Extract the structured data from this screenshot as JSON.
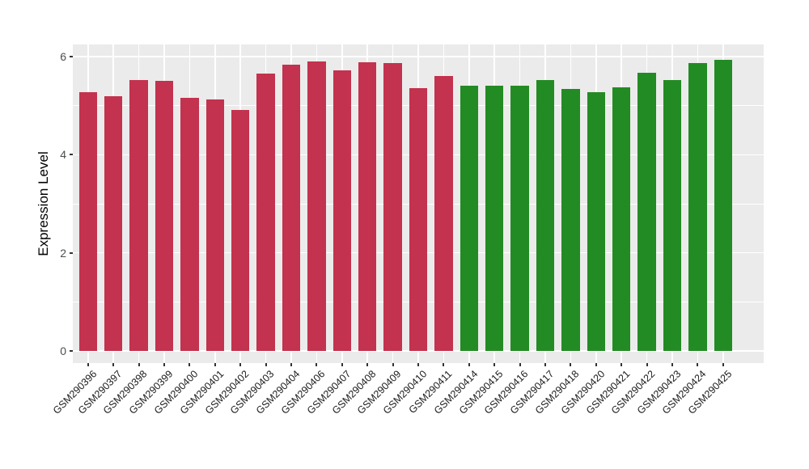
{
  "chart_data": {
    "type": "bar",
    "title": "",
    "xlabel": "",
    "ylabel": "Expression Level",
    "ylim": [
      -0.25,
      6.25
    ],
    "y_ticks": [
      0,
      2,
      4,
      6
    ],
    "y_minor_gridlines": [
      1,
      3,
      5
    ],
    "grid": true,
    "legend": false,
    "panel_background": "#EBEBEB",
    "gridline_color": "#FFFFFF",
    "axis_text_color": "#4D4D4D",
    "group_colors": {
      "left_group": "#C3324E",
      "right_group": "#238B23"
    },
    "bars": [
      {
        "label": "GSM290396",
        "value": 5.27,
        "group": "left_group"
      },
      {
        "label": "GSM290397",
        "value": 5.2,
        "group": "left_group"
      },
      {
        "label": "GSM290398",
        "value": 5.52,
        "group": "left_group"
      },
      {
        "label": "GSM290399",
        "value": 5.51,
        "group": "left_group"
      },
      {
        "label": "GSM290400",
        "value": 5.16,
        "group": "left_group"
      },
      {
        "label": "GSM290401",
        "value": 5.12,
        "group": "left_group"
      },
      {
        "label": "GSM290402",
        "value": 4.92,
        "group": "left_group"
      },
      {
        "label": "GSM290403",
        "value": 5.65,
        "group": "left_group"
      },
      {
        "label": "GSM290404",
        "value": 5.83,
        "group": "left_group"
      },
      {
        "label": "GSM290406",
        "value": 5.91,
        "group": "left_group"
      },
      {
        "label": "GSM290407",
        "value": 5.72,
        "group": "left_group"
      },
      {
        "label": "GSM290408",
        "value": 5.89,
        "group": "left_group"
      },
      {
        "label": "GSM290409",
        "value": 5.87,
        "group": "left_group"
      },
      {
        "label": "GSM290410",
        "value": 5.36,
        "group": "left_group"
      },
      {
        "label": "GSM290411",
        "value": 5.6,
        "group": "left_group"
      },
      {
        "label": "GSM290414",
        "value": 5.41,
        "group": "right_group"
      },
      {
        "label": "GSM290415",
        "value": 5.41,
        "group": "right_group"
      },
      {
        "label": "GSM290416",
        "value": 5.41,
        "group": "right_group"
      },
      {
        "label": "GSM290417",
        "value": 5.53,
        "group": "right_group"
      },
      {
        "label": "GSM290418",
        "value": 5.35,
        "group": "right_group"
      },
      {
        "label": "GSM290420",
        "value": 5.28,
        "group": "right_group"
      },
      {
        "label": "GSM290421",
        "value": 5.37,
        "group": "right_group"
      },
      {
        "label": "GSM290422",
        "value": 5.68,
        "group": "right_group"
      },
      {
        "label": "GSM290423",
        "value": 5.52,
        "group": "right_group"
      },
      {
        "label": "GSM290424",
        "value": 5.87,
        "group": "right_group"
      },
      {
        "label": "GSM290425",
        "value": 5.94,
        "group": "right_group"
      }
    ]
  }
}
